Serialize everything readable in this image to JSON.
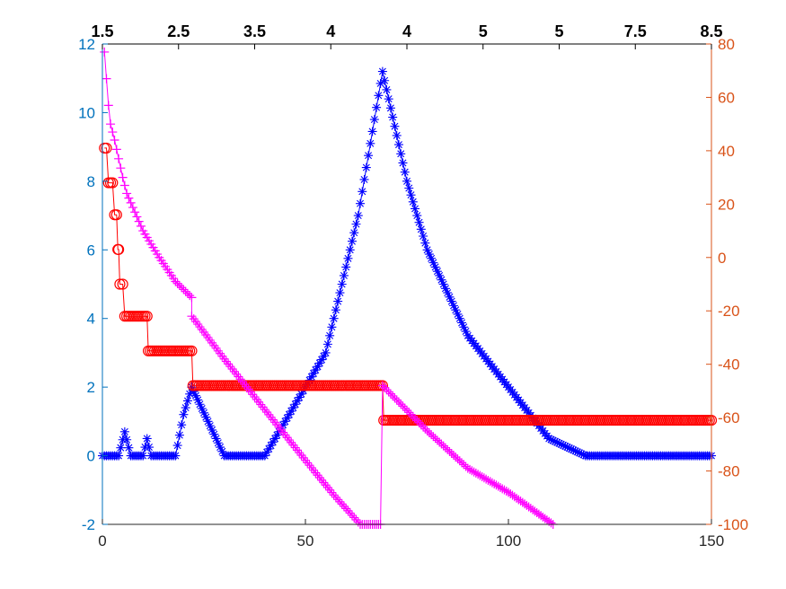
{
  "chart_data": {
    "type": "line",
    "title": "",
    "xlabel": "",
    "ylabel": "",
    "grid": false,
    "legend": "none",
    "xlim": [
      0,
      150
    ],
    "x_ticks": [
      0,
      50,
      100,
      150
    ],
    "y_left_lim": [
      -2,
      12
    ],
    "y_left_ticks": [
      -2,
      0,
      2,
      4,
      6,
      8,
      10,
      12
    ],
    "y_right_lim": [
      -100,
      80
    ],
    "y_right_ticks": [
      -100,
      -80,
      -60,
      -40,
      -20,
      0,
      20,
      40,
      60,
      80
    ],
    "top_tick_labels": [
      "1.5",
      "2.5",
      "3.5",
      "4",
      "4",
      "5",
      "5",
      "7.5",
      "8.5"
    ],
    "colors": {
      "left_axis": "#0072bd",
      "right_axis": "#d95319",
      "blue_series": "#0000ff",
      "red_series": "#ff0000",
      "magenta_series": "#ff00ff"
    },
    "series": [
      {
        "axis": "left",
        "marker": "asterisk",
        "color": "#0000ff",
        "points": [
          [
            0,
            0
          ],
          [
            4,
            0
          ],
          [
            5.5,
            0.7
          ],
          [
            7,
            0
          ],
          [
            10,
            0
          ],
          [
            11,
            0.5
          ],
          [
            12,
            0
          ],
          [
            18,
            0
          ],
          [
            20,
            1.2
          ],
          [
            22,
            2
          ],
          [
            30,
            0
          ],
          [
            40,
            0
          ],
          [
            55,
            3
          ],
          [
            63,
            7
          ],
          [
            69,
            11.2
          ],
          [
            75,
            8
          ],
          [
            80,
            6
          ],
          [
            90,
            3.5
          ],
          [
            100,
            2
          ],
          [
            110,
            0.5
          ],
          [
            119,
            0
          ],
          [
            150,
            0
          ]
        ]
      },
      {
        "axis": "right",
        "marker": "circle",
        "color": "#ff0000",
        "points": [
          [
            0.5,
            41
          ],
          [
            1,
            41
          ],
          [
            1.5,
            28
          ],
          [
            2,
            28
          ],
          [
            2.5,
            28
          ],
          [
            3,
            16
          ],
          [
            3.5,
            16
          ],
          [
            3.8,
            3
          ],
          [
            4,
            3
          ],
          [
            4.3,
            -10
          ],
          [
            5,
            -10
          ],
          [
            5.5,
            -22
          ],
          [
            11,
            -22
          ],
          [
            11.3,
            -35
          ],
          [
            22,
            -35
          ],
          [
            22.3,
            -48
          ],
          [
            69,
            -48
          ],
          [
            69.3,
            -61
          ],
          [
            150,
            -61
          ]
        ]
      },
      {
        "axis": "right",
        "marker": "plus",
        "color": "#ff00ff",
        "points": [
          [
            0.5,
            77
          ],
          [
            1,
            67
          ],
          [
            1.5,
            57
          ],
          [
            2,
            50
          ],
          [
            3,
            44
          ],
          [
            4,
            37
          ],
          [
            5,
            30
          ],
          [
            6,
            24
          ],
          [
            8,
            17
          ],
          [
            10,
            10
          ],
          [
            14,
            0
          ],
          [
            18,
            -9
          ],
          [
            22,
            -15
          ],
          [
            22,
            -22
          ],
          [
            30,
            -38
          ],
          [
            40,
            -57
          ],
          [
            50,
            -76
          ],
          [
            57,
            -89
          ],
          [
            63.5,
            -100
          ],
          [
            68.5,
            -100
          ],
          [
            69,
            -48
          ],
          [
            80,
            -65
          ],
          [
            90,
            -79
          ],
          [
            100,
            -88
          ],
          [
            111,
            -100
          ]
        ]
      }
    ]
  }
}
